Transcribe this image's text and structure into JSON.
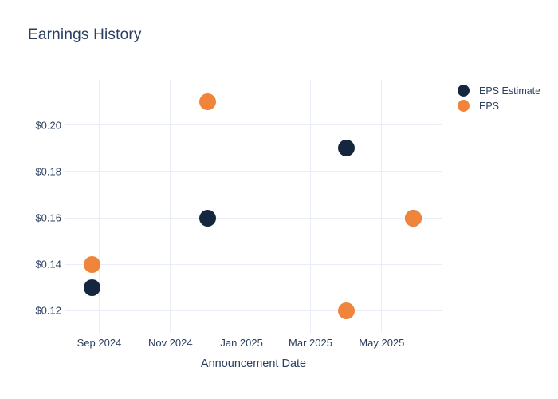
{
  "chart_data": {
    "type": "scatter",
    "title": "Earnings History",
    "xlabel": "Announcement Date",
    "ylabel": "",
    "grid": true,
    "legend_position": "right",
    "x_tick_labels": [
      "Sep 2024",
      "Nov 2024",
      "Jan 2025",
      "Mar 2025",
      "May 2025"
    ],
    "x_tick_dates": [
      "2024-09-01",
      "2024-11-01",
      "2025-01-01",
      "2025-03-01",
      "2025-05-01"
    ],
    "y_tick_labels": [
      "$0.12",
      "$0.14",
      "$0.16",
      "$0.18",
      "$0.20"
    ],
    "y_ticks": [
      0.12,
      0.14,
      0.16,
      0.18,
      0.2
    ],
    "xlim": [
      "2024-08-03",
      "2025-06-22"
    ],
    "ylim": [
      0.1105,
      0.2195
    ],
    "series": [
      {
        "name": "EPS Estimate",
        "color": "#15273f",
        "marker": "circle",
        "points": [
          {
            "date": "2024-08-26",
            "value": 0.13
          },
          {
            "date": "2024-12-03",
            "value": 0.16
          },
          {
            "date": "2025-04-01",
            "value": 0.19
          },
          {
            "date": "2025-05-28",
            "value": 0.16
          }
        ]
      },
      {
        "name": "EPS",
        "color": "#f0843a",
        "marker": "circle",
        "points": [
          {
            "date": "2024-08-26",
            "value": 0.14
          },
          {
            "date": "2024-12-03",
            "value": 0.21
          },
          {
            "date": "2025-04-01",
            "value": 0.12
          },
          {
            "date": "2025-05-28",
            "value": 0.16
          }
        ]
      }
    ]
  },
  "colors": {
    "text": "#2a3f5f",
    "gridline": "#e9edf5",
    "background": "#ffffff",
    "eps_estimate": "#15273f",
    "eps": "#f0843a"
  }
}
